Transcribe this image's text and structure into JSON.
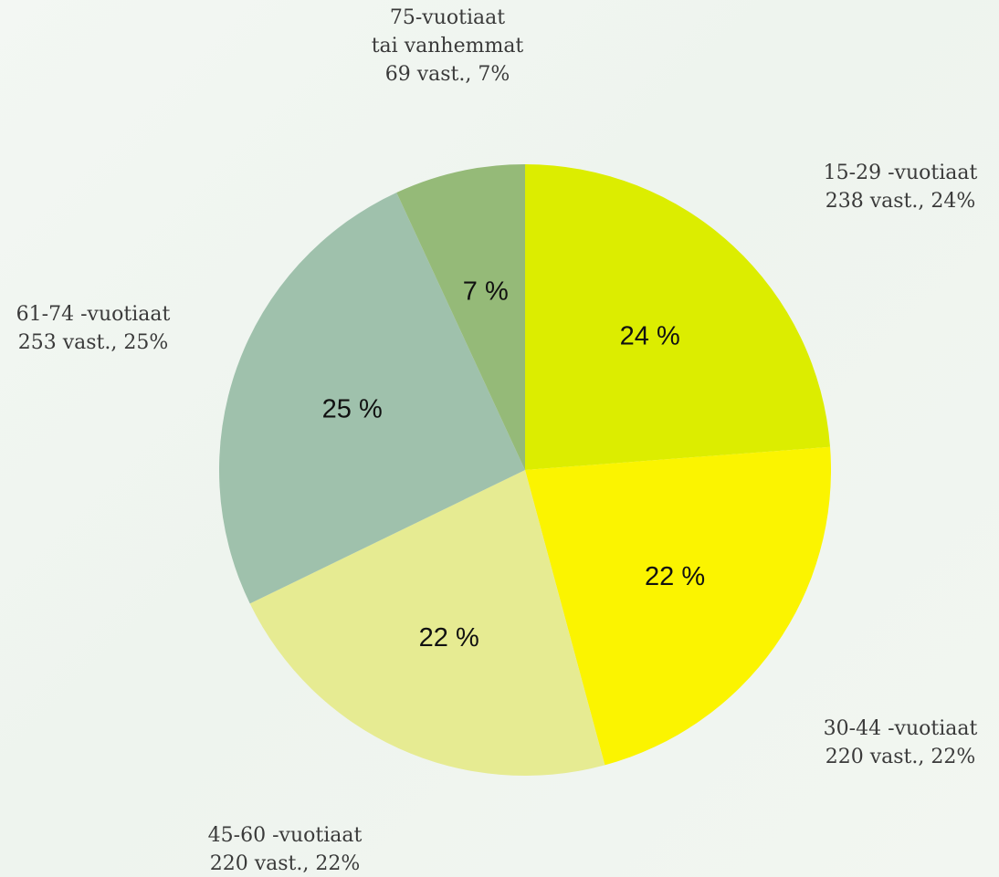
{
  "chart_data": {
    "type": "pie",
    "slices": [
      {
        "label_line1": "15-29 -vuotiaat",
        "label_line2": "",
        "count_text": "238 vast., 24%",
        "value": 238,
        "pct_text": "24 %",
        "color": "#dced00"
      },
      {
        "label_line1": "30-44 -vuotiaat",
        "label_line2": "",
        "count_text": "220 vast., 22%",
        "value": 220,
        "pct_text": "22 %",
        "color": "#fbf400"
      },
      {
        "label_line1": "45-60 -vuotiaat",
        "label_line2": "",
        "count_text": "220 vast., 22%",
        "value": 220,
        "pct_text": "22 %",
        "color": "#e6eb92"
      },
      {
        "label_line1": "61-74 -vuotiaat",
        "label_line2": "",
        "count_text": "253 vast., 25%",
        "value": 253,
        "pct_text": "25 %",
        "color": "#9fc1ac"
      },
      {
        "label_line1": "75-vuotiaat",
        "label_line2": "tai vanhemmat",
        "count_text": "69 vast., 7%",
        "value": 69,
        "pct_text": "7 %",
        "color": "#95ba78"
      }
    ]
  }
}
